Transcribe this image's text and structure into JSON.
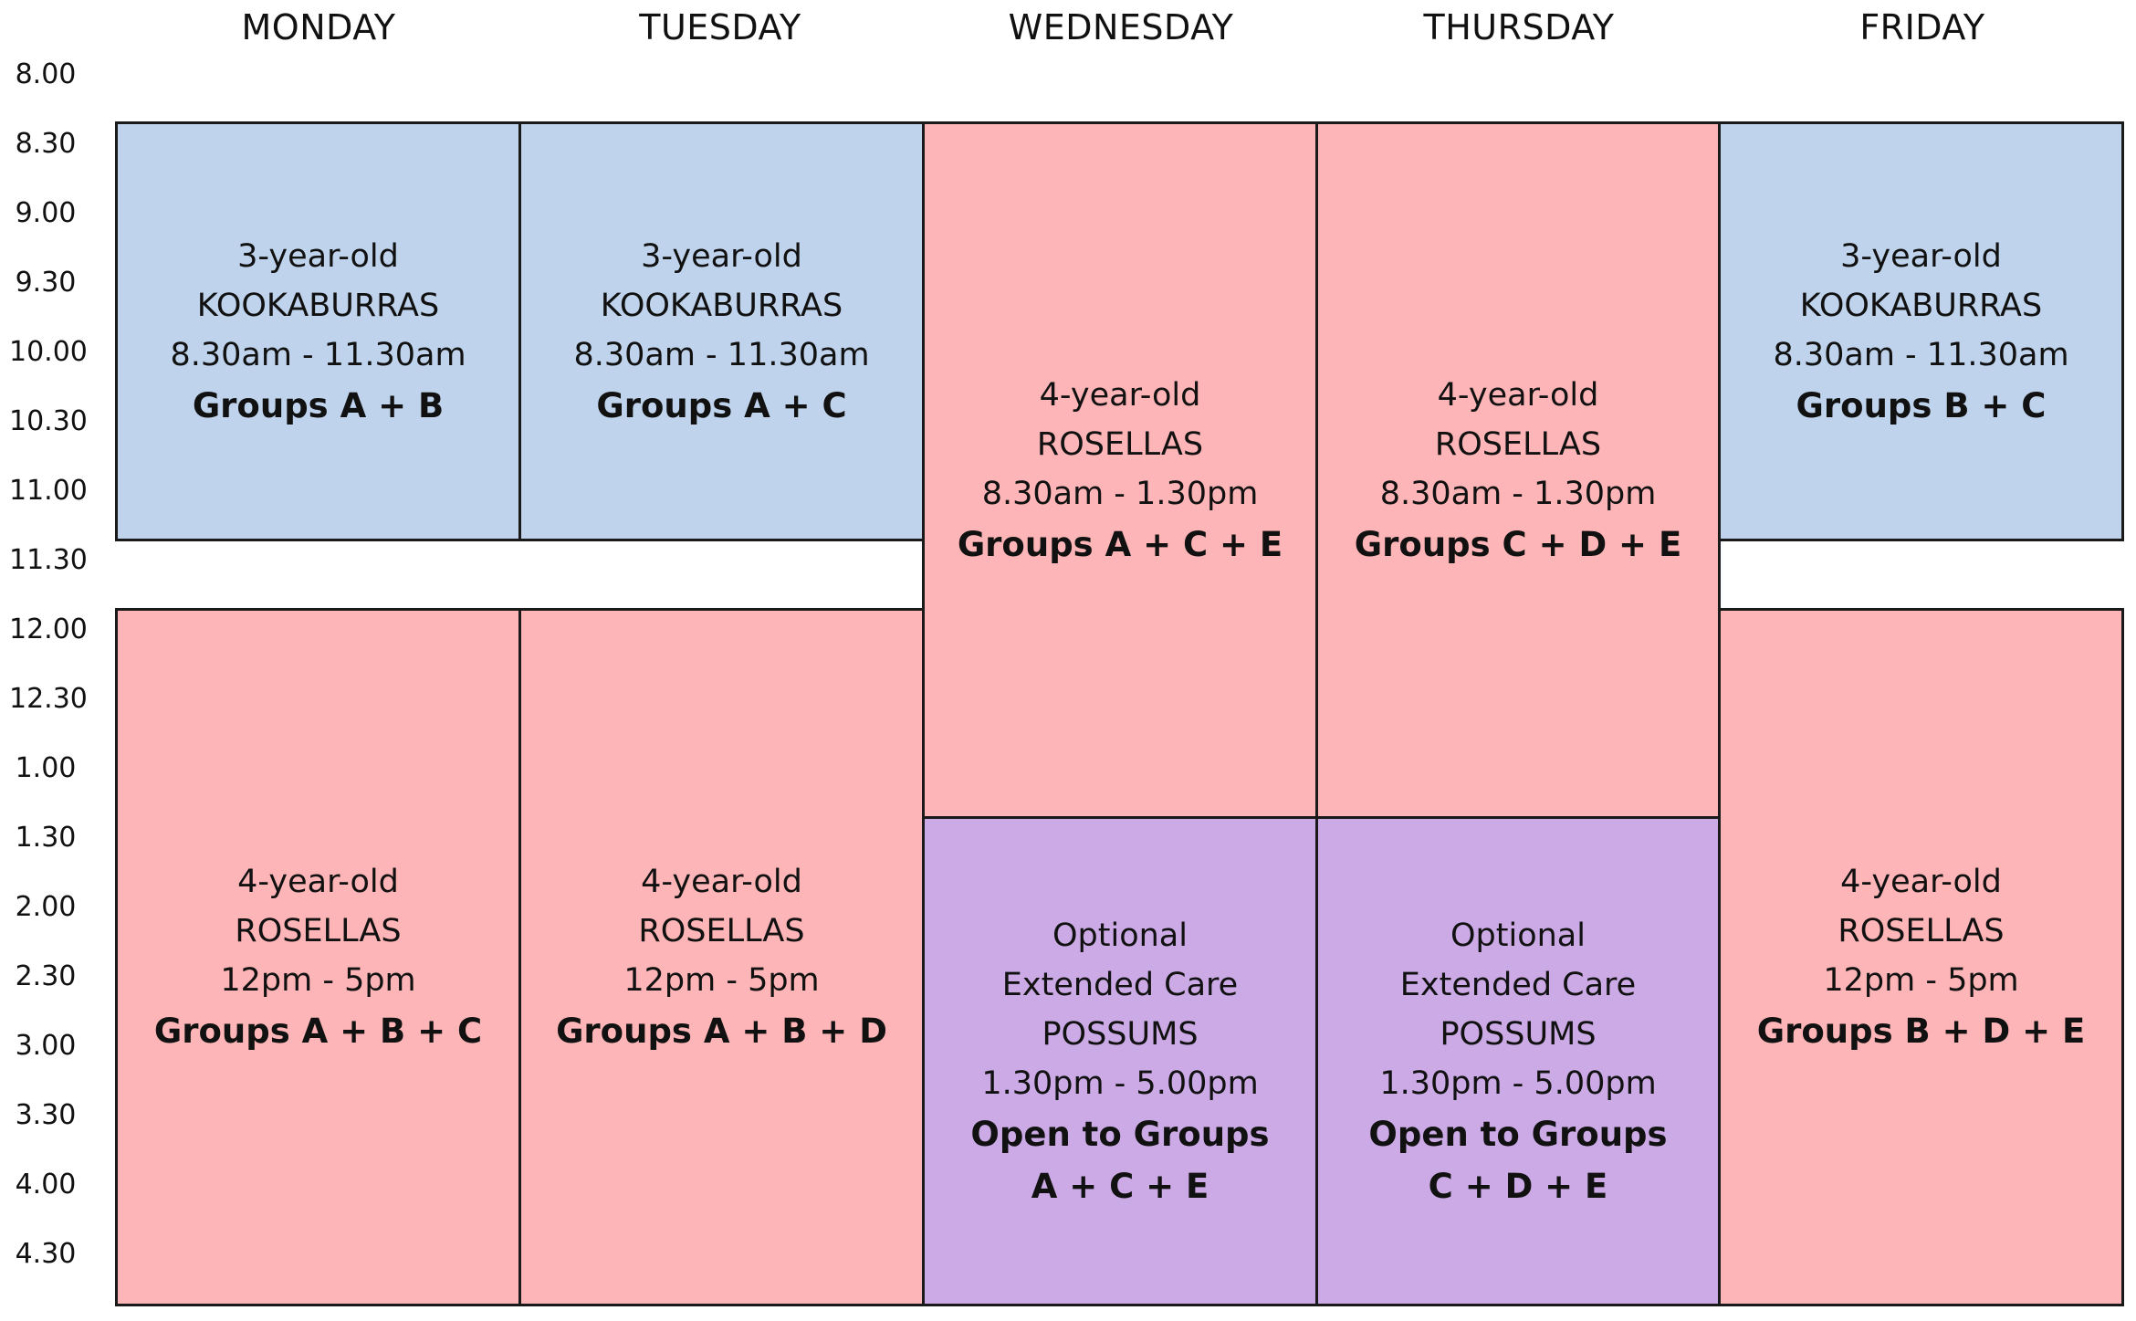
{
  "colors": {
    "kookaburras": "#bfd4ec",
    "rosellas": "#feb5b7",
    "possums": "#cbaae6",
    "border": "#1a1a1a"
  },
  "days": [
    "MONDAY",
    "TUESDAY",
    "WEDNESDAY",
    "THURSDAY",
    "FRIDAY"
  ],
  "times": [
    "8.00",
    "8.30",
    "9.00",
    "9.30",
    "10.00",
    "10.30",
    "11.00",
    "11.30",
    "12.00",
    "12.30",
    "1.00",
    "1.30",
    "2.00",
    "2.30",
    "3.00",
    "3.30",
    "4.00",
    "4.30"
  ],
  "blocks": [
    {
      "id": "mon-am",
      "color": "kookaburras",
      "age": "3-year-old",
      "program": "KOOKABURRAS",
      "hours": "8.30am - 11.30am",
      "groups": [
        "Groups A + B"
      ]
    },
    {
      "id": "tue-am",
      "color": "kookaburras",
      "age": "3-year-old",
      "program": "KOOKABURRAS",
      "hours": "8.30am - 11.30am",
      "groups": [
        "Groups A + C"
      ]
    },
    {
      "id": "fri-am",
      "color": "kookaburras",
      "age": "3-year-old",
      "program": "KOOKABURRAS",
      "hours": "8.30am - 11.30am",
      "groups": [
        "Groups B + C"
      ]
    },
    {
      "id": "wed-am",
      "color": "rosellas",
      "age": "4-year-old",
      "program": "ROSELLAS",
      "hours": "8.30am - 1.30pm",
      "groups": [
        "Groups A + C + E"
      ]
    },
    {
      "id": "thu-am",
      "color": "rosellas",
      "age": "4-year-old",
      "program": "ROSELLAS",
      "hours": "8.30am - 1.30pm",
      "groups": [
        "Groups C + D + E"
      ]
    },
    {
      "id": "mon-pm",
      "color": "rosellas",
      "age": "4-year-old",
      "program": "ROSELLAS",
      "hours": "12pm - 5pm",
      "groups": [
        "Groups A + B + C"
      ]
    },
    {
      "id": "tue-pm",
      "color": "rosellas",
      "age": "4-year-old",
      "program": "ROSELLAS",
      "hours": "12pm - 5pm",
      "groups": [
        "Groups A + B + D"
      ]
    },
    {
      "id": "fri-pm",
      "color": "rosellas",
      "age": "4-year-old",
      "program": "ROSELLAS",
      "hours": "12pm - 5pm",
      "groups": [
        "Groups B + D + E"
      ]
    },
    {
      "id": "wed-pm",
      "color": "possums",
      "note": "Optional",
      "age": "Extended Care",
      "program": "POSSUMS",
      "hours": "1.30pm - 5.00pm",
      "groups": [
        "Open to Groups",
        "A + C + E"
      ]
    },
    {
      "id": "thu-pm",
      "color": "possums",
      "note": "Optional",
      "age": "Extended Care",
      "program": "POSSUMS",
      "hours": "1.30pm - 5.00pm",
      "groups": [
        "Open to Groups",
        "C + D + E"
      ]
    }
  ]
}
